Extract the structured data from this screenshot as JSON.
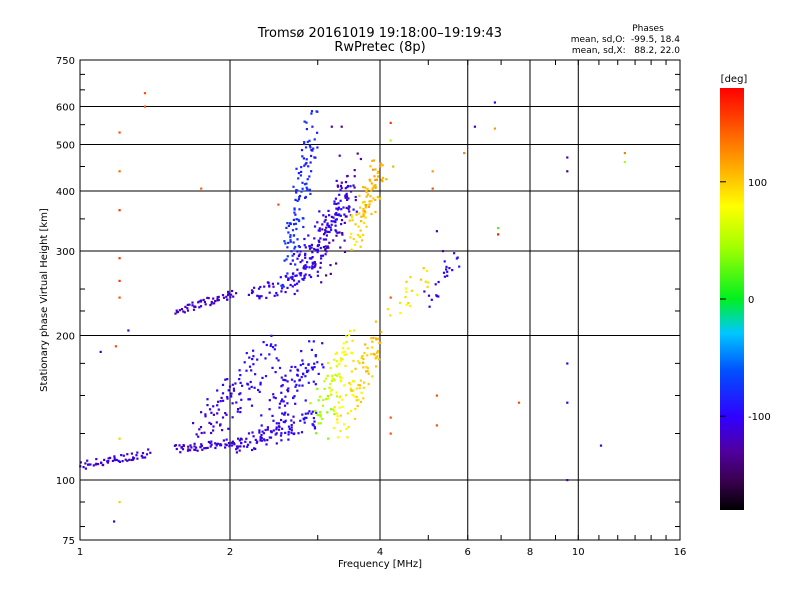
{
  "chart_data": {
    "type": "scatter",
    "title": "Tromsø 20161019 19:18:00–19:19:43",
    "subtitle": "RwPretec (8p)",
    "xlabel": "Frequency [MHz]",
    "ylabel": "Stationary phase Virtual Height [km]",
    "xscale": "log",
    "yscale": "log",
    "xlim": [
      1,
      16
    ],
    "ylim": [
      75,
      750
    ],
    "grid": true,
    "x_ticks": [
      {
        "v": 1,
        "label": "1",
        "grid": true
      },
      {
        "v": 2,
        "label": "2",
        "grid": true
      },
      {
        "v": 4,
        "label": "4",
        "grid": true
      },
      {
        "v": 6,
        "label": "6",
        "grid": true
      },
      {
        "v": 8,
        "label": "8",
        "grid": true
      },
      {
        "v": 10,
        "label": "10",
        "grid": true
      },
      {
        "v": 16,
        "label": "16",
        "grid": false
      }
    ],
    "y_ticks": [
      {
        "v": 75,
        "label": "75",
        "grid": false
      },
      {
        "v": 100,
        "label": "100",
        "grid": true
      },
      {
        "v": 200,
        "label": "200",
        "grid": true
      },
      {
        "v": 300,
        "label": "300",
        "grid": true
      },
      {
        "v": 400,
        "label": "400",
        "grid": true
      },
      {
        "v": 500,
        "label": "500",
        "grid": true
      },
      {
        "v": 600,
        "label": "600",
        "grid": true
      },
      {
        "v": 750,
        "label": "750",
        "grid": false
      }
    ],
    "stats": {
      "title": "Phases",
      "line1": "mean, sd,O:  -99.5, 18.4",
      "line2": "mean, sd,X:   88.2, 22.0"
    },
    "colorbar": {
      "label": "[deg]",
      "min": -180,
      "max": 180,
      "ticks": [
        {
          "v": 100,
          "label": "100"
        },
        {
          "v": 0,
          "label": "0"
        },
        {
          "v": -100,
          "label": "-100"
        }
      ]
    },
    "series": [
      {
        "traces": [
          {
            "f0": 1.0,
            "f1": 1.38,
            "h0": 107,
            "h1": 114,
            "p0": -115,
            "p1": -110,
            "n": 55,
            "jf": 0.01,
            "jh": 0.02
          },
          {
            "f0": 1.55,
            "f1": 2.1,
            "h0": 116,
            "h1": 120,
            "p0": -115,
            "p1": -105,
            "n": 60,
            "jf": 0.01,
            "jh": 0.02
          },
          {
            "f0": 2.05,
            "f1": 3.0,
            "h0": 118,
            "h1": 135,
            "p0": -110,
            "p1": -95,
            "n": 90,
            "jf": 0.02,
            "jh": 0.05
          },
          {
            "f0": 1.55,
            "f1": 2.05,
            "h0": 225,
            "h1": 245,
            "p0": -120,
            "p1": -115,
            "n": 55,
            "jf": 0.01,
            "jh": 0.02
          },
          {
            "f0": 2.2,
            "f1": 3.0,
            "h0": 240,
            "h1": 275,
            "p0": -110,
            "p1": -100,
            "n": 60,
            "jf": 0.02,
            "jh": 0.04
          },
          {
            "f0": 2.7,
            "f1": 3.5,
            "h0": 265,
            "h1": 400,
            "p0": -105,
            "p1": -95,
            "n": 140,
            "jf": 0.04,
            "jh": 0.08
          },
          {
            "f0": 2.6,
            "f1": 2.95,
            "h0": 280,
            "h1": 560,
            "p0": -75,
            "p1": -85,
            "n": 110,
            "jf": 0.03,
            "jh": 0.12
          },
          {
            "f0": 3.1,
            "f1": 3.5,
            "h0": 280,
            "h1": 440,
            "p0": -130,
            "p1": -120,
            "n": 60,
            "jf": 0.05,
            "jh": 0.1
          },
          {
            "f0": 3.55,
            "f1": 4.02,
            "h0": 320,
            "h1": 445,
            "p0": 95,
            "p1": 115,
            "n": 90,
            "jf": 0.03,
            "jh": 0.08
          },
          {
            "f0": 1.75,
            "f1": 2.45,
            "h0": 125,
            "h1": 185,
            "p0": -115,
            "p1": -95,
            "n": 110,
            "jf": 0.06,
            "jh": 0.1
          },
          {
            "f0": 2.4,
            "f1": 3.0,
            "h0": 130,
            "h1": 185,
            "p0": -110,
            "p1": -90,
            "n": 100,
            "jf": 0.05,
            "jh": 0.1
          },
          {
            "f0": 3.0,
            "f1": 3.5,
            "h0": 132,
            "h1": 195,
            "p0": 40,
            "p1": 90,
            "n": 80,
            "jf": 0.04,
            "jh": 0.1
          },
          {
            "f0": 3.3,
            "f1": 4.0,
            "h0": 130,
            "h1": 200,
            "p0": 80,
            "p1": 110,
            "n": 90,
            "jf": 0.03,
            "jh": 0.1
          },
          {
            "f0": 4.3,
            "f1": 5.0,
            "h0": 225,
            "h1": 270,
            "p0": 85,
            "p1": 95,
            "n": 20,
            "jf": 0.04,
            "jh": 0.05
          },
          {
            "f0": 5.0,
            "f1": 5.75,
            "h0": 235,
            "h1": 300,
            "p0": -115,
            "p1": -90,
            "n": 22,
            "jf": 0.03,
            "jh": 0.06
          }
        ]
      },
      {
        "points": [
          [
            1.35,
            640,
            150
          ],
          [
            1.35,
            600,
            150
          ],
          [
            1.2,
            530,
            150
          ],
          [
            1.2,
            440,
            140
          ],
          [
            1.2,
            365,
            160
          ],
          [
            1.2,
            290,
            160
          ],
          [
            1.2,
            260,
            160
          ],
          [
            1.2,
            240,
            150
          ],
          [
            1.18,
            190,
            150
          ],
          [
            1.1,
            185,
            -110
          ],
          [
            1.2,
            90,
            100
          ],
          [
            1.2,
            122,
            100
          ],
          [
            1.25,
            205,
            -110
          ],
          [
            1.17,
            82,
            -110
          ],
          [
            1.75,
            405,
            140
          ],
          [
            4.2,
            555,
            160
          ],
          [
            4.2,
            510,
            50
          ],
          [
            4.25,
            450,
            110
          ],
          [
            4.2,
            240,
            150
          ],
          [
            4.2,
            135,
            150
          ],
          [
            4.2,
            125,
            150
          ],
          [
            5.1,
            440,
            120
          ],
          [
            5.1,
            405,
            150
          ],
          [
            5.2,
            330,
            -120
          ],
          [
            5.35,
            300,
            -130
          ],
          [
            5.2,
            150,
            150
          ],
          [
            5.2,
            130,
            150
          ],
          [
            6.8,
            612,
            -100
          ],
          [
            6.8,
            540,
            120
          ],
          [
            6.9,
            335,
            20
          ],
          [
            6.9,
            325,
            170
          ],
          [
            6.2,
            545,
            -120
          ],
          [
            5.9,
            480,
            130
          ],
          [
            7.6,
            145,
            150
          ],
          [
            9.5,
            470,
            -120
          ],
          [
            9.5,
            440,
            -140
          ],
          [
            9.5,
            175,
            -110
          ],
          [
            9.5,
            145,
            -110
          ],
          [
            9.5,
            100,
            -130
          ],
          [
            11.1,
            118,
            -110
          ],
          [
            12.4,
            480,
            130
          ],
          [
            12.4,
            460,
            50
          ],
          [
            3.35,
            545,
            -130
          ],
          [
            3.2,
            545,
            -120
          ],
          [
            2.5,
            375,
            150
          ]
        ]
      }
    ]
  }
}
